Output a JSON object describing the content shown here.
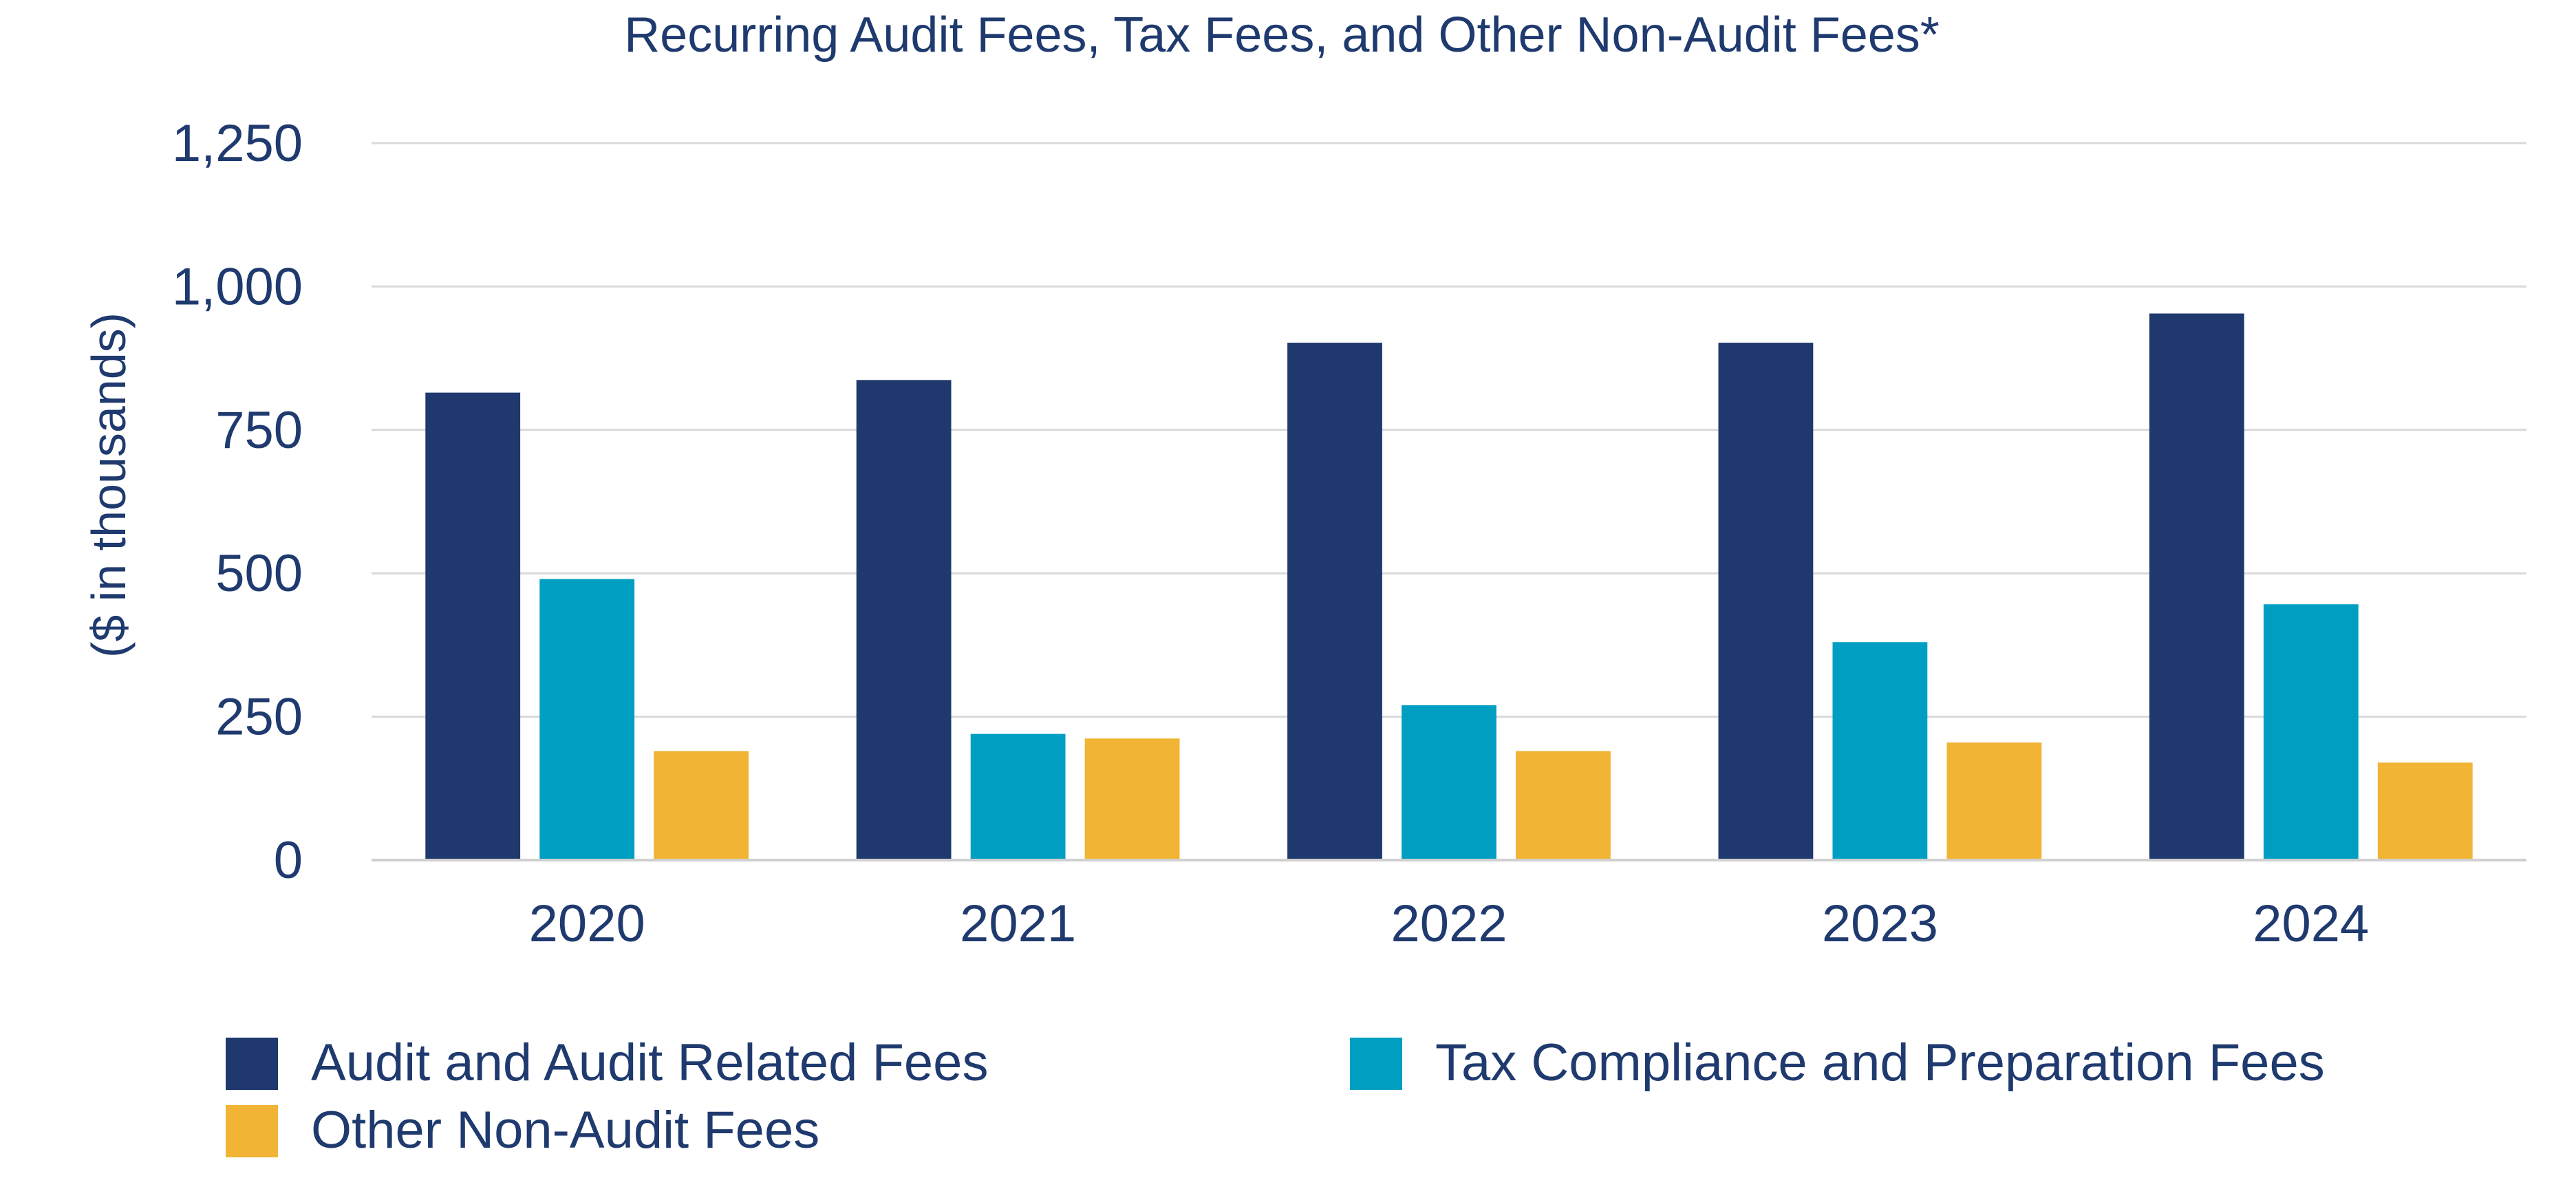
{
  "chart_data": {
    "type": "bar",
    "title": "Recurring Audit Fees, Tax Fees, and Other Non-Audit Fees*",
    "xlabel": "",
    "ylabel": "($ in thousands)",
    "ylim": [
      0,
      1250
    ],
    "yticks": [
      0,
      250,
      500,
      750,
      1000,
      1250
    ],
    "ytick_labels": [
      "0",
      "250",
      "500",
      "750",
      "1,000",
      "1,250"
    ],
    "grid": true,
    "legend_position": "bottom",
    "categories": [
      "2020",
      "2021",
      "2022",
      "2023",
      "2024"
    ],
    "series": [
      {
        "name": "Audit and Audit Related Fees",
        "color": "#1f386d",
        "values": [
          815,
          837,
          902,
          902,
          953
        ]
      },
      {
        "name": "Tax Compliance and Preparation Fees",
        "color": "#009fc2",
        "values": [
          490,
          220,
          270,
          380,
          446
        ]
      },
      {
        "name": "Other Non-Audit Fees",
        "color": "#f1b434",
        "values": [
          190,
          212,
          190,
          205,
          170
        ]
      }
    ]
  }
}
